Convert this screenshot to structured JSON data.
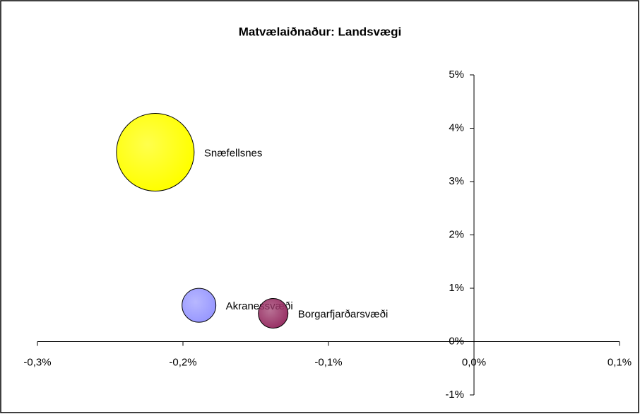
{
  "chart_data": {
    "type": "bubble",
    "title": "Matvælaiðnaður: Landsvægi",
    "labels": [
      "Snæfellsnes",
      "Akranessvæði",
      "Borgarfjarðarsvæði"
    ],
    "x": [
      -0.219,
      -0.189,
      -0.138
    ],
    "values": [
      3.55,
      0.68,
      0.53
    ],
    "sizes": [
      100,
      19,
      14.6
    ],
    "colors": [
      "#ffff00",
      "#9999ff",
      "#993366"
    ],
    "xlim": [
      -0.3,
      0.1
    ],
    "xticks": [
      {
        "value": -0.3,
        "label": "-0,3%"
      },
      {
        "value": -0.2,
        "label": "-0,2%"
      },
      {
        "value": -0.1,
        "label": "-0,1%"
      },
      {
        "value": 0,
        "label": "0,0%"
      },
      {
        "value": 0.1,
        "label": "0,1%"
      }
    ],
    "ylim": [
      -1,
      5
    ],
    "yticks": [
      {
        "value": -1,
        "label": "-1%"
      },
      {
        "value": 0,
        "label": "0%"
      },
      {
        "value": 1,
        "label": "1%"
      },
      {
        "value": 2,
        "label": "2%"
      },
      {
        "value": 3,
        "label": "3%"
      },
      {
        "value": 4,
        "label": "4%"
      },
      {
        "value": 5,
        "label": "5%"
      }
    ],
    "grid": false
  }
}
